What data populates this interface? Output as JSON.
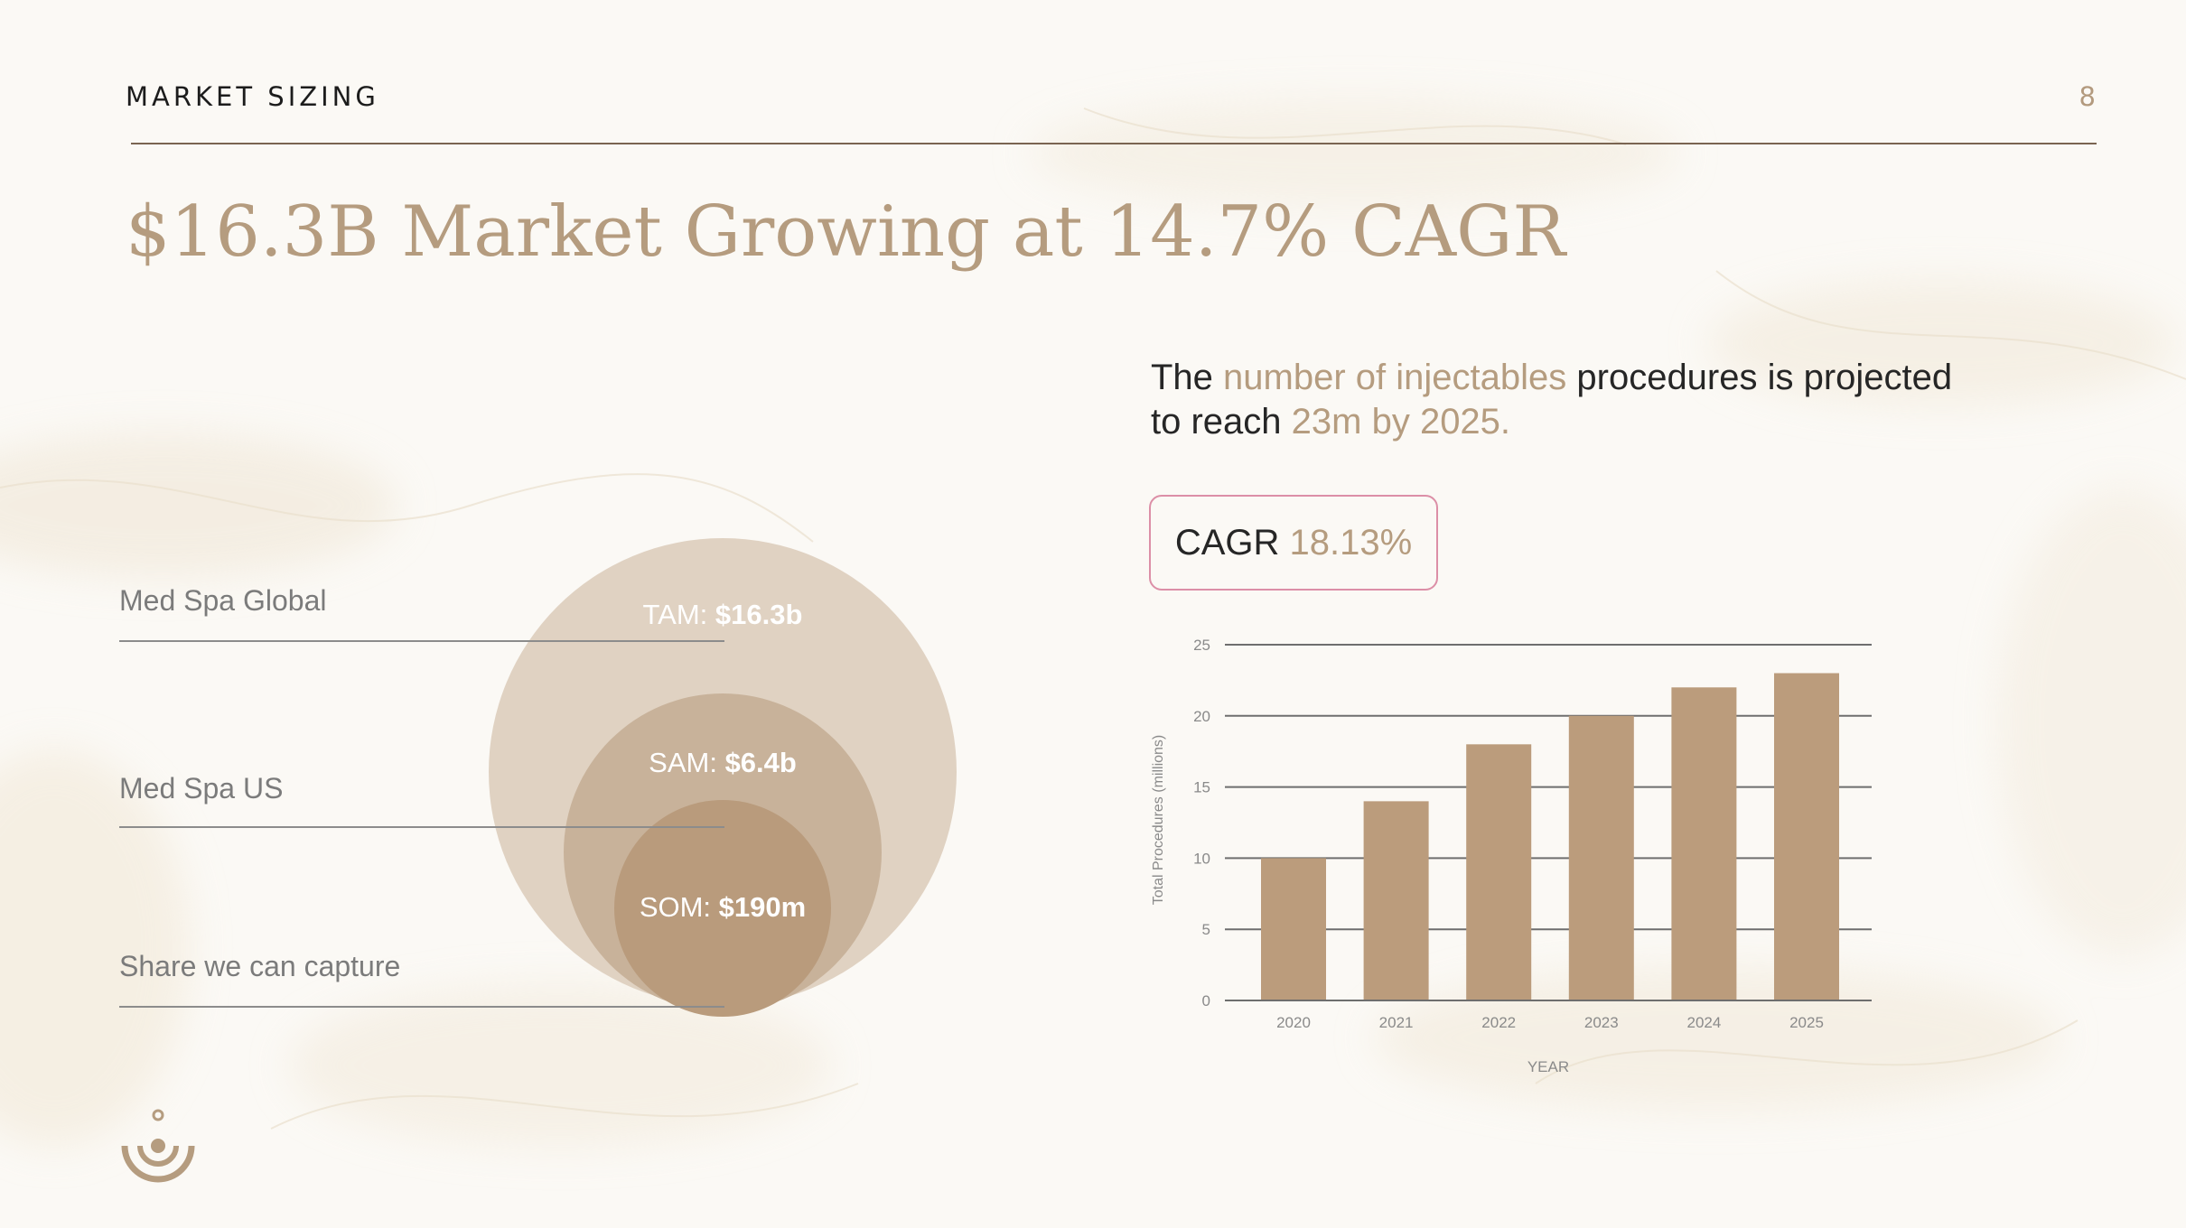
{
  "header": {
    "section_label": "MARKET SIZING",
    "page_number": "8"
  },
  "title": "$16.3B Market Growing at 14.7% CAGR",
  "tiers": [
    {
      "label": "Med Spa Global",
      "prefix": "TAM: ",
      "value": "$16.3b"
    },
    {
      "label": "Med Spa US",
      "prefix": "SAM: ",
      "value": "$6.4b"
    },
    {
      "label": "Share we can capture",
      "prefix": "SOM: ",
      "value": "$190m"
    }
  ],
  "intro": {
    "part1": "The ",
    "highlight1": "number of injectables",
    "part2": " procedures is projected to reach ",
    "highlight2": "23m by 2025."
  },
  "cagr": {
    "label": "CAGR ",
    "value": "18.13%"
  },
  "colors": {
    "accent": "#b59c7f",
    "bar": "#bb9c7c",
    "tam": "#e0d2c2",
    "sam": "#c8b29a",
    "som": "#b99b7c",
    "box_border": "#dc8fa7"
  },
  "icons": {
    "logo": "spa-brand-logo-icon"
  },
  "chart_data": {
    "type": "bar",
    "categories": [
      "2020",
      "2021",
      "2022",
      "2023",
      "2024",
      "2025"
    ],
    "values": [
      10,
      14,
      18,
      20,
      22,
      23
    ],
    "title": "",
    "xlabel": "YEAR",
    "ylabel": "Total Procedures (millions)",
    "ylim": [
      0,
      25
    ],
    "yticks": [
      0,
      5,
      10,
      15,
      20,
      25
    ],
    "grid": true
  }
}
